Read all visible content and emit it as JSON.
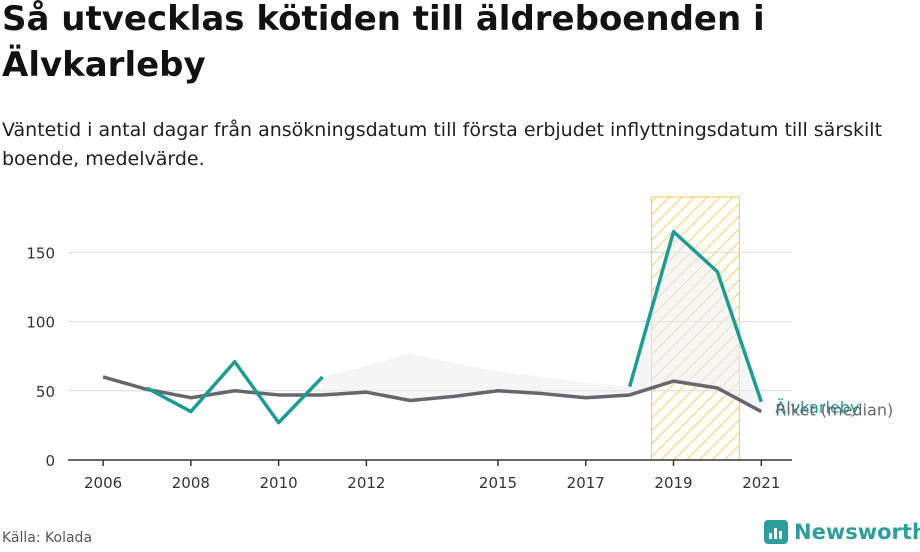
{
  "title": "Så utvecklas kötiden till äldreboenden i Älvkarleby",
  "subtitle": "Väntetid i antal dagar från ansökningsdatum till första erbjudet inflyttningsdatum till särskilt boende, medelvärde.",
  "source": "Källa: Kolada",
  "brand": "Newsworthy",
  "colors": {
    "local": "#1a9e94",
    "national": "#66666d",
    "highlight": "#f5c84a",
    "grid": "#d9d9d9"
  },
  "chart_data": {
    "type": "line",
    "xlim": [
      2005.2,
      2021.7
    ],
    "ylim": [
      0,
      190
    ],
    "y_ticks": [
      0,
      50,
      100,
      150
    ],
    "x_ticks": [
      2006,
      2008,
      2010,
      2012,
      2015,
      2017,
      2019,
      2021
    ],
    "x_tick_labels": [
      "2006",
      "2008",
      "2010",
      "2012",
      "2015",
      "2017",
      "2019",
      "2021"
    ],
    "highlight_range": [
      2018.5,
      2020.5
    ],
    "series": [
      {
        "name": "Älvkarleby",
        "role": "local",
        "x": [
          2007,
          2008,
          2009,
          2010,
          2011,
          2018,
          2019,
          2020,
          2021
        ],
        "y": [
          52,
          35,
          71,
          27,
          60,
          53,
          165,
          136,
          42
        ],
        "segments": [
          [
            0,
            4
          ],
          [
            5,
            8
          ]
        ]
      },
      {
        "name": "Riket (median)",
        "role": "national",
        "x": [
          2006,
          2007,
          2008,
          2009,
          2010,
          2011,
          2012,
          2013,
          2014,
          2015,
          2016,
          2017,
          2018,
          2019,
          2020,
          2021
        ],
        "y": [
          60,
          51,
          45,
          50,
          47,
          47,
          49,
          43,
          46,
          50,
          48,
          45,
          47,
          57,
          52,
          35
        ]
      }
    ],
    "range_band": [
      {
        "x": 2011,
        "low": 47,
        "high": 60
      },
      {
        "x": 2012,
        "low": 49,
        "high": 68
      },
      {
        "x": 2013,
        "low": 43,
        "high": 77
      },
      {
        "x": 2014,
        "low": 46,
        "high": 70
      },
      {
        "x": 2015,
        "low": 50,
        "high": 64
      },
      {
        "x": 2016,
        "low": 48,
        "high": 60
      },
      {
        "x": 2017,
        "low": 45,
        "high": 56
      },
      {
        "x": 2018,
        "low": 47,
        "high": 53
      },
      {
        "x": 2019,
        "low": 57,
        "high": 165
      },
      {
        "x": 2020,
        "low": 52,
        "high": 136
      },
      {
        "x": 2021,
        "low": 35,
        "high": 42
      }
    ]
  }
}
